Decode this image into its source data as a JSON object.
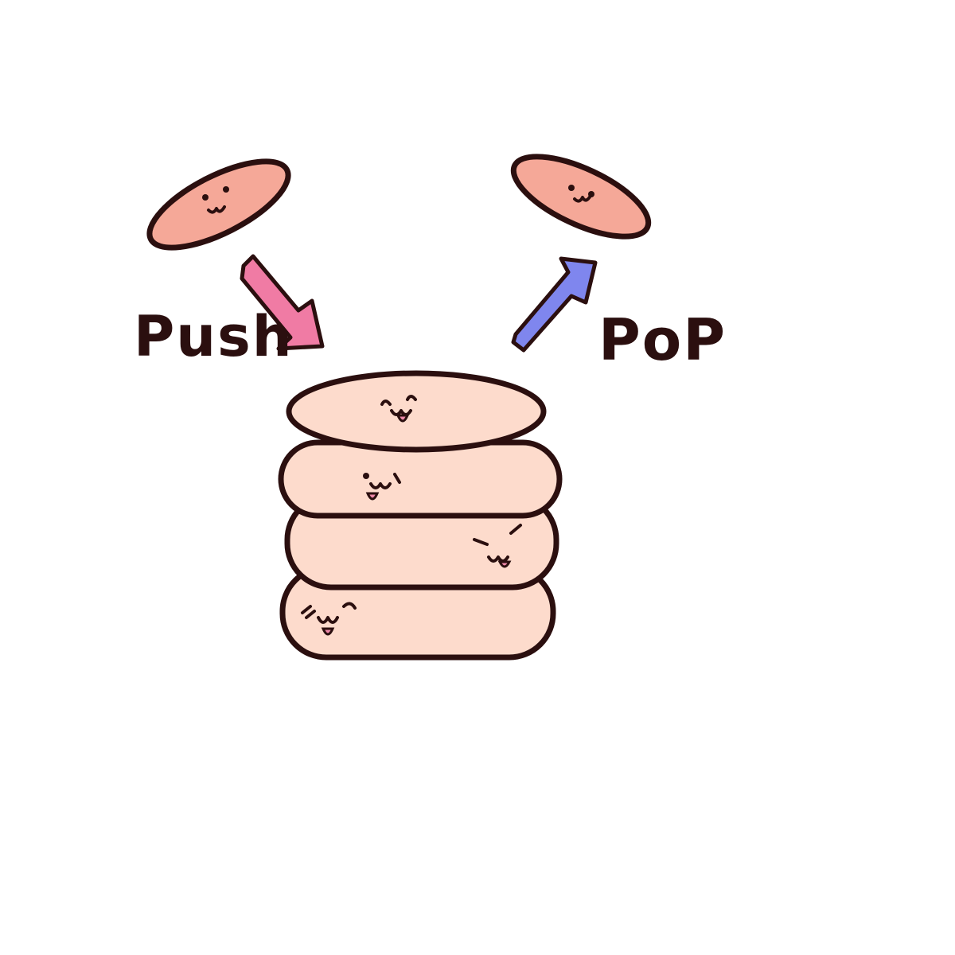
{
  "labels": {
    "push": "Push",
    "pop": "PoP"
  },
  "colors": {
    "outline": "#2b0f0f",
    "floating_pancake": "#f5a898",
    "stack_pancake": "#fddbcc",
    "push_arrow": "#f07ba4",
    "pop_arrow": "#7f86ee",
    "tongue": "#ef88a8",
    "background": "#ffffff"
  },
  "stack": {
    "item_count": 4
  },
  "icons": {
    "push_arrow": "arrow-down-right-icon",
    "pop_arrow": "arrow-up-right-icon"
  }
}
